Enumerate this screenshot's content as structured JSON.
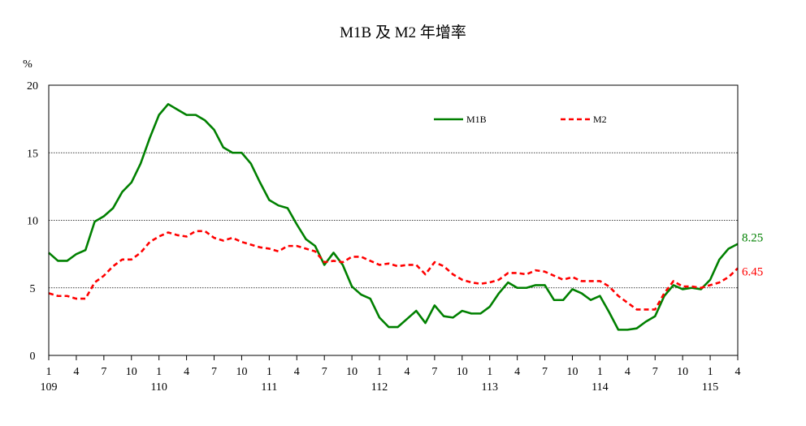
{
  "chart_data": {
    "type": "line",
    "title": "M1B 及 M2 年增率",
    "ylabel": "%",
    "ylim": [
      0,
      20
    ],
    "yticks": [
      0,
      5,
      10,
      15,
      20
    ],
    "grid": "horizontal-dashed",
    "legend_position": "top-right",
    "x_month_labels": [
      "1",
      "4",
      "7",
      "10",
      "1",
      "4",
      "7",
      "10",
      "1",
      "4",
      "7",
      "10",
      "1",
      "4",
      "7",
      "10",
      "1",
      "4",
      "7",
      "10",
      "1",
      "4",
      "7",
      "10",
      "1",
      "4"
    ],
    "x_year_labels": [
      "109",
      "110",
      "111",
      "112",
      "113",
      "114",
      "115"
    ],
    "x_period": "2020-01 to 2026-04 (ROC years 109-115), monthly",
    "colors": {
      "M1B": "#008000",
      "M2": "#ff0000",
      "grid": "#000000"
    },
    "series": [
      {
        "name": "M1B",
        "style": "solid",
        "end_label": "8.25",
        "values": [
          7.6,
          7.0,
          7.0,
          7.5,
          7.8,
          9.9,
          10.3,
          10.9,
          12.1,
          12.8,
          14.2,
          16.1,
          17.8,
          18.6,
          18.2,
          17.8,
          17.8,
          17.4,
          16.7,
          15.4,
          15.0,
          15.0,
          14.2,
          12.8,
          11.5,
          11.1,
          10.9,
          9.7,
          8.6,
          8.1,
          6.7,
          7.6,
          6.7,
          5.1,
          4.5,
          4.2,
          2.8,
          2.1,
          2.1,
          2.7,
          3.3,
          2.4,
          3.7,
          2.9,
          2.8,
          3.3,
          3.1,
          3.1,
          3.6,
          4.6,
          5.4,
          5.0,
          5.0,
          5.2,
          5.2,
          4.1,
          4.1,
          4.9,
          4.6,
          4.1,
          4.4,
          3.2,
          1.9,
          1.9,
          2.0,
          2.5,
          2.9,
          4.4,
          5.2,
          4.9,
          5.0,
          4.9,
          5.6,
          7.1,
          7.9,
          8.25
        ]
      },
      {
        "name": "M2",
        "style": "dashed",
        "end_label": "6.45",
        "values": [
          4.6,
          4.4,
          4.4,
          4.2,
          4.2,
          5.4,
          5.9,
          6.6,
          7.1,
          7.1,
          7.6,
          8.4,
          8.8,
          9.1,
          8.9,
          8.8,
          9.2,
          9.2,
          8.7,
          8.5,
          8.7,
          8.4,
          8.2,
          8.0,
          7.9,
          7.7,
          8.1,
          8.1,
          7.9,
          7.7,
          6.9,
          7.0,
          6.9,
          7.3,
          7.3,
          7.0,
          6.7,
          6.8,
          6.6,
          6.7,
          6.7,
          6.0,
          6.9,
          6.6,
          6.0,
          5.6,
          5.4,
          5.3,
          5.4,
          5.6,
          6.1,
          6.1,
          6.0,
          6.3,
          6.2,
          5.9,
          5.6,
          5.8,
          5.5,
          5.5,
          5.5,
          5.1,
          4.4,
          3.9,
          3.4,
          3.4,
          3.4,
          4.6,
          5.5,
          5.1,
          5.1,
          5.0,
          5.2,
          5.4,
          5.8,
          6.45
        ]
      }
    ]
  }
}
